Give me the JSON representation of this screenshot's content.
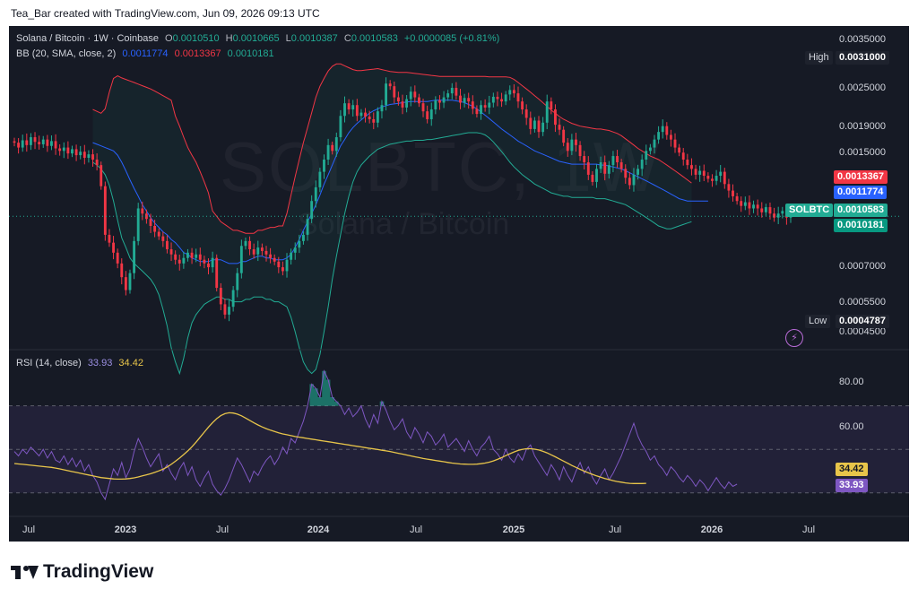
{
  "header": {
    "attribution": "Tea_Bar created with TradingView.com, Jun 09, 2026 09:13 UTC"
  },
  "legend": {
    "symbol": "Solana / Bitcoin · 1W · Coinbase",
    "o_label": "O",
    "o_value": "0.0010510",
    "h_label": "H",
    "h_value": "0.0010665",
    "l_label": "L",
    "l_value": "0.0010387",
    "c_label": "C",
    "c_value": "0.0010583",
    "change": "+0.0000085 (+0.81%)",
    "bb_label": "BB (20, SMA, close, 2)",
    "bb_basis": "0.0011774",
    "bb_upper": "0.0013367",
    "bb_lower": "0.0010181",
    "rsi_label": "RSI (14, close)",
    "rsi_value": "33.93",
    "rsi_ma": "34.42"
  },
  "watermark": {
    "ticker": "SOLBTC, 1W",
    "name": "Solana / Bitcoin"
  },
  "price_axis": {
    "ticks": [
      "0.0035000",
      "0.0025000",
      "0.0019000",
      "0.0015000",
      "0.0007000",
      "0.0005500",
      "0.0004500"
    ],
    "high_label": "High",
    "high_value": "0.0031000",
    "low_label": "Low",
    "low_value": "0.0004787",
    "tag_upper": "0.0013367",
    "tag_basis": "0.0011774",
    "tag_symbol": "SOLBTC",
    "tag_close": "0.0010583",
    "tag_lower": "0.0010181"
  },
  "rsi_axis": {
    "ticks": [
      "80.00",
      "60.00"
    ],
    "tag_ma": "34.42",
    "tag_rsi": "33.93"
  },
  "time_axis": [
    {
      "label": "Jul",
      "bold": false
    },
    {
      "label": "2023",
      "bold": true
    },
    {
      "label": "Jul",
      "bold": false
    },
    {
      "label": "2024",
      "bold": true
    },
    {
      "label": "Jul",
      "bold": false
    },
    {
      "label": "2025",
      "bold": true
    },
    {
      "label": "Jul",
      "bold": false
    },
    {
      "label": "2026",
      "bold": true
    },
    {
      "label": "Jul",
      "bold": false
    }
  ],
  "footer": {
    "brand": "TradingView"
  },
  "colors": {
    "up": "#22ab94",
    "down": "#f23645",
    "basis": "#2962ff",
    "upper": "#f23645",
    "lower": "#22ab94",
    "rsi": "#7e57c2",
    "rsi_ma": "#e8c54a",
    "bg": "#161a25"
  },
  "chart_data": {
    "type": "candlestick",
    "scale": "log",
    "ylim": [
      0.00043,
      0.0039
    ],
    "rsi_ylim": [
      20,
      95
    ],
    "rsi_bands": [
      30,
      50,
      70
    ],
    "close": [
      0.00178,
      0.00172,
      0.00181,
      0.00175,
      0.00185,
      0.00179,
      0.00176,
      0.00182,
      0.00174,
      0.0018,
      0.00171,
      0.00168,
      0.00172,
      0.00165,
      0.0017,
      0.00163,
      0.00167,
      0.0016,
      0.00164,
      0.00158,
      0.00152,
      0.00131,
      0.00093,
      0.00088,
      0.00082,
      0.00076,
      0.00069,
      0.00063,
      0.00071,
      0.00089,
      0.00112,
      0.00108,
      0.00104,
      0.00099,
      0.00095,
      0.00092,
      0.00089,
      0.00084,
      0.00081,
      0.00078,
      0.00076,
      0.00079,
      0.00082,
      0.00079,
      0.00081,
      0.00078,
      0.00076,
      0.00074,
      0.00079,
      0.00064,
      0.00057,
      0.00053,
      0.00056,
      0.00063,
      0.00071,
      0.00086,
      0.00089,
      0.00084,
      0.00081,
      0.00085,
      0.00083,
      0.00081,
      0.00079,
      0.00077,
      0.00074,
      0.00072,
      0.00078,
      0.00082,
      0.00085,
      0.00089,
      0.00093,
      0.00104,
      0.00118,
      0.0013,
      0.00145,
      0.00158,
      0.00175,
      0.00168,
      0.00185,
      0.00215,
      0.00235,
      0.00225,
      0.00232,
      0.00215,
      0.0022,
      0.00214,
      0.0021,
      0.00205,
      0.00222,
      0.00232,
      0.0027,
      0.00265,
      0.00245,
      0.00238,
      0.00228,
      0.00242,
      0.00255,
      0.00245,
      0.00235,
      0.00222,
      0.0021,
      0.00225,
      0.0024,
      0.00236,
      0.00245,
      0.00252,
      0.00262,
      0.00248,
      0.00236,
      0.00244,
      0.00238,
      0.00226,
      0.00218,
      0.00232,
      0.00228,
      0.00236,
      0.00246,
      0.00242,
      0.00238,
      0.0025,
      0.00258,
      0.00252,
      0.00238,
      0.00225,
      0.00212,
      0.00196,
      0.00208,
      0.00192,
      0.00205,
      0.00238,
      0.00225,
      0.00202,
      0.00195,
      0.00178,
      0.00168,
      0.00182,
      0.00175,
      0.00162,
      0.00155,
      0.00142,
      0.00135,
      0.00148,
      0.00155,
      0.00143,
      0.00152,
      0.00162,
      0.00155,
      0.00148,
      0.00139,
      0.00132,
      0.00142,
      0.00148,
      0.00158,
      0.00168,
      0.00172,
      0.00182,
      0.00192,
      0.002,
      0.00188,
      0.00182,
      0.00172,
      0.00166,
      0.00158,
      0.00152,
      0.00148,
      0.00142,
      0.00146,
      0.00141,
      0.00138,
      0.00136,
      0.00141,
      0.00145,
      0.00133,
      0.00127,
      0.00122,
      0.00118,
      0.00114,
      0.00117,
      0.00112,
      0.00115,
      0.00112,
      0.00109,
      0.00113,
      0.00108,
      0.00105,
      0.00108,
      0.0011,
      0.00105,
      0.00106
    ],
    "bb_upper_start_index": 19,
    "bb_upper": [
      0.00225,
      0.00222,
      0.00219,
      0.00226,
      0.00254,
      0.0028,
      0.00285,
      0.00281,
      0.00278,
      0.00275,
      0.00272,
      0.00269,
      0.00266,
      0.00263,
      0.0026,
      0.00256,
      0.00252,
      0.00248,
      0.00244,
      0.0024,
      0.00215,
      0.002,
      0.00185,
      0.00172,
      0.00163,
      0.00155,
      0.00145,
      0.00135,
      0.00125,
      0.0011,
      0.00106,
      0.00102,
      0.001,
      0.00098,
      0.00096,
      0.00096,
      0.00095,
      0.00094,
      0.00094,
      0.00094,
      0.00096,
      0.00096,
      0.00097,
      0.00098,
      0.00098,
      0.00099,
      0.00099,
      0.00108,
      0.00123,
      0.0014,
      0.00158,
      0.00178,
      0.00198,
      0.0022,
      0.00245,
      0.00265,
      0.0028,
      0.00295,
      0.00305,
      0.0031,
      0.0031,
      0.00306,
      0.00302,
      0.00298,
      0.00296,
      0.00296,
      0.00297,
      0.00298,
      0.00299,
      0.003,
      0.00298,
      0.00296,
      0.00294,
      0.00293,
      0.00292,
      0.00292,
      0.00292,
      0.00291,
      0.0029,
      0.00289,
      0.00288,
      0.00287,
      0.00286,
      0.00285,
      0.00284,
      0.00284,
      0.00284,
      0.00284,
      0.00284,
      0.00284,
      0.00284,
      0.00284,
      0.00284,
      0.00284,
      0.00284,
      0.00284,
      0.00283,
      0.00283,
      0.00283,
      0.00283,
      0.00283,
      0.00282,
      0.00278,
      0.00272,
      0.00266,
      0.0026,
      0.00254,
      0.00248,
      0.00242,
      0.00236,
      0.0023,
      0.00224,
      0.00219,
      0.00214,
      0.0021,
      0.00207,
      0.00204,
      0.00202,
      0.002,
      0.00199,
      0.00198,
      0.00197,
      0.00196,
      0.00196,
      0.00195,
      0.00194,
      0.00192,
      0.0019,
      0.00187,
      0.00183,
      0.00179,
      0.00175,
      0.00171,
      0.00168,
      0.00165,
      0.00162,
      0.0016,
      0.00158,
      0.00155,
      0.00152,
      0.00149,
      0.00146,
      0.00143,
      0.0014,
      0.00137,
      0.00134
    ],
    "bb_basis": [
      0.00178,
      0.00176,
      0.00174,
      0.00172,
      0.0017,
      0.00168,
      0.00163,
      0.00155,
      0.00146,
      0.00137,
      0.00129,
      0.00122,
      0.00115,
      0.0011,
      0.00105,
      0.00101,
      0.00098,
      0.00095,
      0.00093,
      0.0009,
      0.00088,
      0.00085,
      0.00082,
      0.00081,
      0.00079,
      0.00078,
      0.00077,
      0.00077,
      0.00077,
      0.00078,
      0.00078,
      0.00078,
      0.00077,
      0.00076,
      0.00076,
      0.00076,
      0.00077,
      0.00077,
      0.00078,
      0.00079,
      0.0008,
      0.0008,
      0.00079,
      0.00079,
      0.00078,
      0.00078,
      0.00078,
      0.00079,
      0.00081,
      0.00085,
      0.0009,
      0.00096,
      0.00102,
      0.00108,
      0.00115,
      0.00123,
      0.00133,
      0.00142,
      0.00152,
      0.00163,
      0.00174,
      0.00182,
      0.00191,
      0.00198,
      0.00204,
      0.00209,
      0.00214,
      0.00219,
      0.00223,
      0.00226,
      0.00229,
      0.00231,
      0.00233,
      0.00234,
      0.00235,
      0.00236,
      0.00237,
      0.00238,
      0.00238,
      0.00238,
      0.00238,
      0.00238,
      0.00239,
      0.0024,
      0.0024,
      0.0024,
      0.0024,
      0.0024,
      0.00239,
      0.00238,
      0.00236,
      0.00233,
      0.0023,
      0.00226,
      0.00221,
      0.00216,
      0.00211,
      0.00206,
      0.00201,
      0.00196,
      0.00192,
      0.00188,
      0.00184,
      0.0018,
      0.00177,
      0.00174,
      0.00171,
      0.00168,
      0.00166,
      0.00164,
      0.00162,
      0.0016,
      0.00158,
      0.00156,
      0.00155,
      0.00154,
      0.00153,
      0.00153,
      0.00153,
      0.00153,
      0.00153,
      0.00153,
      0.00153,
      0.00152,
      0.00152,
      0.00151,
      0.0015,
      0.00149,
      0.00148,
      0.00146,
      0.00144,
      0.00142,
      0.0014,
      0.00138,
      0.00136,
      0.00134,
      0.00132,
      0.0013,
      0.00128,
      0.00126,
      0.00124,
      0.00122,
      0.0012,
      0.00119,
      0.00118,
      0.00118,
      0.00118,
      0.00118,
      0.00118,
      0.00118
    ],
    "bb_lower": [
      0.00155,
      0.00152,
      0.00148,
      0.00142,
      0.00132,
      0.00118,
      0.00103,
      0.00091,
      0.00085,
      0.00079,
      0.00076,
      0.00074,
      0.00072,
      0.0007,
      0.00068,
      0.00065,
      0.00061,
      0.00055,
      0.00049,
      0.00042,
      0.00038,
      0.00035,
      0.00039,
      0.00045,
      0.0005,
      0.00053,
      0.00055,
      0.00057,
      0.00058,
      0.00059,
      0.0006,
      0.0006,
      0.00059,
      0.00059,
      0.00058,
      0.00058,
      0.00058,
      0.00059,
      0.00059,
      0.0006,
      0.0006,
      0.0006,
      0.00059,
      0.00059,
      0.00058,
      0.00058,
      0.00057,
      0.00056,
      0.00052,
      0.00047,
      0.00042,
      0.00038,
      0.00036,
      0.00035,
      0.00036,
      0.0004,
      0.00047,
      0.00056,
      0.00068,
      0.0008,
      0.00093,
      0.00108,
      0.00122,
      0.00135,
      0.00145,
      0.00152,
      0.00157,
      0.00162,
      0.00166,
      0.0017,
      0.00172,
      0.00174,
      0.00176,
      0.00177,
      0.00178,
      0.00179,
      0.0018,
      0.0018,
      0.00181,
      0.00181,
      0.00181,
      0.00182,
      0.00182,
      0.00183,
      0.00184,
      0.00185,
      0.00186,
      0.00187,
      0.00188,
      0.00189,
      0.0019,
      0.00191,
      0.00191,
      0.00191,
      0.0019,
      0.00188,
      0.00184,
      0.00179,
      0.00173,
      0.00167,
      0.00161,
      0.00155,
      0.0015,
      0.00146,
      0.00142,
      0.00139,
      0.00136,
      0.00133,
      0.00131,
      0.00129,
      0.00127,
      0.00125,
      0.00124,
      0.00123,
      0.00122,
      0.00122,
      0.00121,
      0.00121,
      0.00121,
      0.00121,
      0.00121,
      0.00121,
      0.0012,
      0.0012,
      0.0012,
      0.00119,
      0.00118,
      0.00117,
      0.00116,
      0.00115,
      0.00113,
      0.00111,
      0.00109,
      0.00107,
      0.00105,
      0.00103,
      0.00101,
      0.00099,
      0.00098,
      0.00097,
      0.00097,
      0.00098,
      0.00099,
      0.001,
      0.00101,
      0.00102
    ],
    "rsi": [
      49,
      47,
      50,
      48,
      51,
      49,
      47,
      50,
      46,
      49,
      45,
      44,
      47,
      43,
      46,
      42,
      45,
      40,
      43,
      38,
      35,
      30,
      27,
      34,
      41,
      38,
      44,
      37,
      41,
      49,
      55,
      51,
      46,
      42,
      45,
      48,
      40,
      43,
      39,
      36,
      41,
      44,
      38,
      42,
      36,
      33,
      37,
      40,
      34,
      31,
      29,
      32,
      36,
      41,
      46,
      43,
      39,
      35,
      40,
      38,
      42,
      45,
      47,
      43,
      46,
      51,
      48,
      55,
      53,
      58,
      63,
      70,
      80,
      78,
      74,
      86,
      82,
      74,
      72,
      70,
      66,
      69,
      65,
      67,
      70,
      64,
      60,
      66,
      62,
      72,
      68,
      63,
      59,
      61,
      64,
      58,
      55,
      60,
      57,
      53,
      58,
      56,
      52,
      54,
      57,
      51,
      53,
      55,
      52,
      49,
      54,
      50,
      47,
      51,
      53,
      56,
      50,
      48,
      45,
      50,
      46,
      44,
      48,
      45,
      50,
      52,
      47,
      44,
      41,
      38,
      43,
      40,
      36,
      42,
      38,
      35,
      40,
      44,
      39,
      42,
      37,
      34,
      38,
      41,
      36,
      39,
      43,
      47,
      52,
      57,
      62,
      56,
      52,
      49,
      45,
      47,
      43,
      41,
      38,
      42,
      40,
      37,
      35,
      38,
      36,
      33,
      36,
      34,
      31,
      34,
      37,
      34,
      32,
      35,
      33,
      34
    ],
    "rsi_ma": [
      43.5,
      43.3,
      43.1,
      42.9,
      42.7,
      42.5,
      42.3,
      42.1,
      41.9,
      41.7,
      41.4,
      41,
      40.6,
      40.2,
      39.8,
      39.4,
      39,
      38.6,
      38.2,
      37.8,
      37.4,
      37,
      36.8,
      36.6,
      36.4,
      36.3,
      36.3,
      36.4,
      36.6,
      36.9,
      37.3,
      37.8,
      38.3,
      38.8,
      39.4,
      40.1,
      40.9,
      41.9,
      43.1,
      44.5,
      46,
      47.6,
      49.3,
      51.2,
      53.3,
      55.6,
      57.9,
      60.2,
      62.3,
      64.1,
      65.5,
      66.4,
      66.8,
      66.7,
      66.2,
      65.4,
      64.4,
      63.3,
      62.2,
      61.2,
      60.3,
      59.5,
      58.8,
      58.2,
      57.6,
      57.1,
      56.7,
      56.3,
      55.9,
      55.6,
      55.3,
      55,
      54.7,
      54.4,
      54.1,
      53.8,
      53.5,
      53.2,
      52.9,
      52.6,
      52.3,
      52,
      51.7,
      51.4,
      51.1,
      50.8,
      50.5,
      50.2,
      49.9,
      49.6,
      49.3,
      49,
      48.6,
      48.2,
      47.8,
      47.4,
      47,
      46.6,
      46.2,
      45.8,
      45.5,
      45.2,
      44.9,
      44.6,
      44.3,
      44,
      43.7,
      43.5,
      43.3,
      43.2,
      43.1,
      43.1,
      43.2,
      43.4,
      43.7,
      44.1,
      44.7,
      45.4,
      46.2,
      47.1,
      48,
      48.8,
      49.5,
      50,
      50.3,
      50.3,
      50.1,
      49.7,
      49.1,
      48.4,
      47.5,
      46.6,
      45.6,
      44.6,
      43.6,
      42.6,
      41.7,
      40.8,
      40,
      39.2,
      38.5,
      37.8,
      37.2,
      36.6,
      36.1,
      35.6,
      35.2,
      34.9,
      34.6,
      34.4,
      34.3,
      34.3,
      34.3,
      34.4
    ]
  }
}
